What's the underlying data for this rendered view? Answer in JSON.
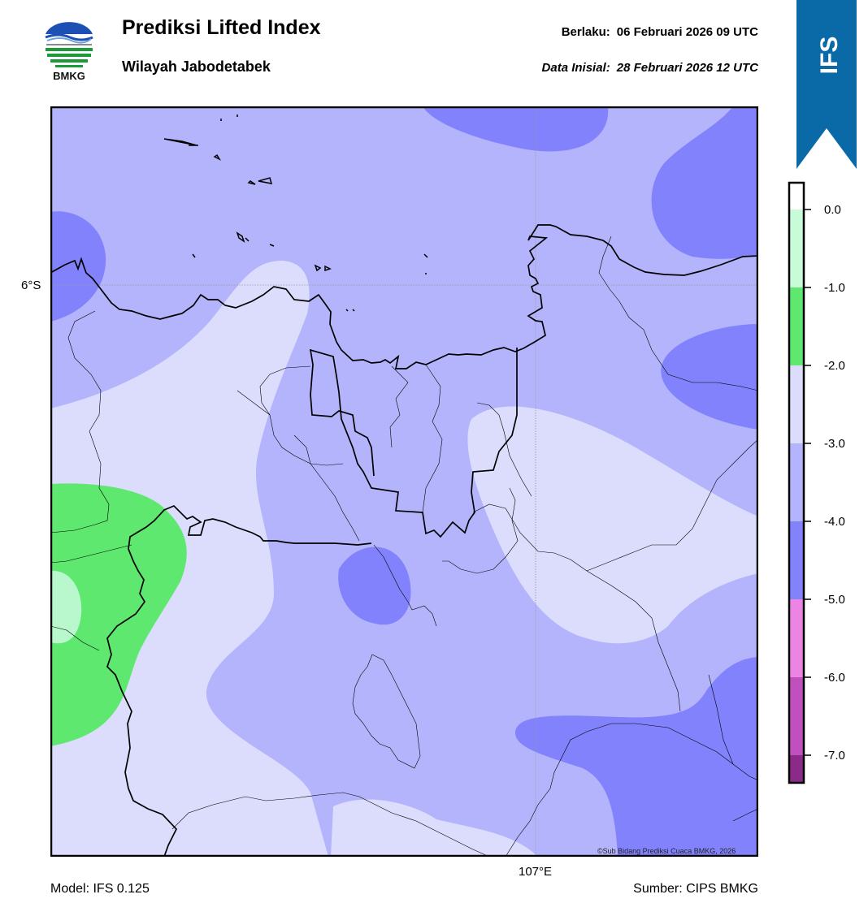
{
  "header": {
    "logo_text": "BMKG",
    "title": "Prediksi Lifted Index",
    "subtitle": "Wilayah Jabodetabek",
    "valid_label": "Berlaku:",
    "valid_value": "06 Februari 2026 09 UTC",
    "init_label": "Data Inisial:",
    "init_value": "28 Februari 2026 12 UTC",
    "ribbon_text": "IFS"
  },
  "map": {
    "lat_label": "6°S",
    "lon_label": "107°E",
    "credit": "©Sub Bidang Prediksi Cuaca BMKG, 2026"
  },
  "colorbar": {
    "ticks": [
      "0.0",
      "-1.0",
      "-2.0",
      "-3.0",
      "-4.0",
      "-5.0",
      "-6.0",
      "-7.0"
    ],
    "colors": {
      "0_to_-1": "#c8fcd8",
      "-1_to_-2": "#5fe86f",
      "-2_to_-3": "#dcdcfc",
      "-3_to_-4": "#b4b4fc",
      "-4_to_-5": "#8282fc",
      "-5_to_-6": "#ec84e4",
      "-6_to_-7": "#c050be",
      "below_-7": "#8c2a8a"
    }
  },
  "footer": {
    "model": "Model: IFS 0.125",
    "source": "Sumber: CIPS BMKG"
  }
}
